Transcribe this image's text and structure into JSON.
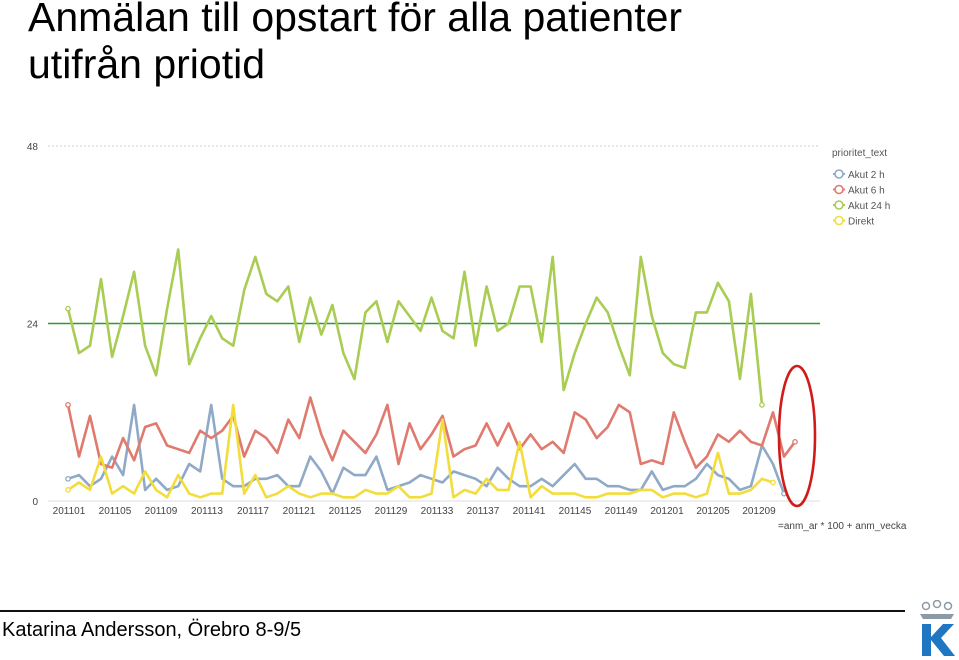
{
  "slide": {
    "title_line1": "Anmälan till opstart för alla patienter",
    "title_line2": "utifrån priotid",
    "footer": "Katarina Andersson, Örebro 8-9/5"
  },
  "chart_data": {
    "type": "line",
    "title": "",
    "xlabel": "=anm_ar * 100 + anm_vecka",
    "ylabel": "",
    "ylim": [
      0,
      48
    ],
    "yticks": [
      0,
      24,
      48
    ],
    "reference_line": 24,
    "legend": {
      "title": "prioritet_text",
      "position": "top-right"
    },
    "x_tick_labels": [
      "201101",
      "201105",
      "201109",
      "201113",
      "201117",
      "201121",
      "201125",
      "201129",
      "201133",
      "201137",
      "201141",
      "201145",
      "201149",
      "201201",
      "201205",
      "201209"
    ],
    "series": [
      {
        "name": "Akut 2 h",
        "color": "#8fa9c8",
        "values": [
          3,
          3.5,
          2,
          3,
          6,
          3.5,
          13,
          1.5,
          3,
          1.5,
          2,
          5,
          4,
          13,
          3,
          2,
          2,
          3,
          3,
          3.5,
          2,
          2,
          6,
          4,
          1,
          4.5,
          3.5,
          3.5,
          6,
          1.5,
          2,
          2.5,
          3.5,
          3,
          2.5,
          4,
          3.5,
          3,
          2,
          4.5,
          3,
          2,
          2,
          3,
          2,
          3.5,
          5,
          3,
          3,
          2,
          2,
          1.5,
          1.5,
          4,
          1.5,
          2,
          2,
          3,
          5,
          3.5,
          3,
          1.5,
          2,
          7.5,
          5,
          1
        ]
      },
      {
        "name": "Akut 6 h",
        "color": "#e07a6e",
        "values": [
          13,
          6,
          11.5,
          5,
          4.5,
          8.5,
          5.5,
          10,
          10.5,
          7.5,
          7,
          6.5,
          9.5,
          8.5,
          9.5,
          11.5,
          6,
          9.5,
          8.5,
          6.5,
          11,
          8.5,
          14,
          9,
          5.5,
          9.5,
          8,
          6.5,
          9,
          13,
          5,
          10.5,
          7,
          9,
          11.5,
          6,
          7,
          7.5,
          10.5,
          7.5,
          10.5,
          7,
          9,
          7,
          8,
          6.5,
          12,
          11,
          8.5,
          10,
          13,
          12,
          5,
          5.5,
          5,
          12,
          8,
          4.5,
          6,
          9,
          8,
          9.5,
          8,
          7.5,
          12,
          6,
          8
        ]
      },
      {
        "name": "Akut 24 h",
        "color": "#a9cc52",
        "values": [
          26,
          20,
          21,
          30,
          19.5,
          25,
          31,
          21,
          17,
          26,
          34,
          18.5,
          22,
          25,
          22,
          21,
          28.5,
          33,
          28,
          27,
          29,
          21.5,
          27.5,
          22.5,
          26.5,
          20,
          16.5,
          25.5,
          27,
          21.5,
          27,
          25,
          23,
          27.5,
          23,
          22,
          31,
          21,
          29,
          23,
          24,
          29,
          29,
          21.5,
          33,
          15,
          20,
          24,
          27.5,
          25.5,
          21,
          17,
          33,
          25,
          20,
          18.5,
          18,
          25.5,
          25.5,
          29.5,
          27,
          16.5,
          28,
          13
        ]
      },
      {
        "name": "Direkt",
        "color": "#f2dd3c",
        "values": [
          1.5,
          2.5,
          1.5,
          6,
          1,
          2,
          1,
          4,
          1.5,
          0.5,
          3.5,
          1,
          0.5,
          1,
          1,
          13,
          1,
          3.5,
          0.5,
          1,
          2,
          1,
          0.5,
          1,
          1,
          0.5,
          0.5,
          1.5,
          1,
          1,
          2,
          0.5,
          0.5,
          1,
          11,
          0.5,
          1.5,
          1,
          3,
          1.5,
          1.5,
          8,
          0.5,
          2,
          1,
          1,
          1,
          0.5,
          0.5,
          1,
          1,
          1,
          1.5,
          1.5,
          0.5,
          1,
          1,
          0.5,
          1,
          6.5,
          1,
          1,
          1.5,
          3,
          2.5
        ]
      }
    ]
  }
}
